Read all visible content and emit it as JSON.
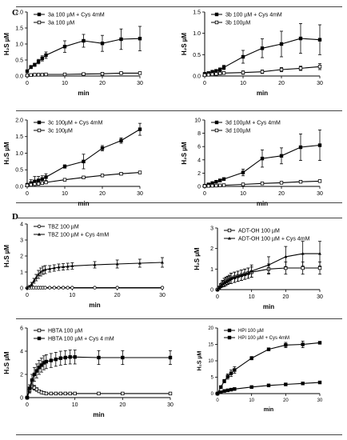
{
  "figure": {
    "panel_c_label": "C",
    "panel_d_label": "D"
  },
  "chart_data": [
    {
      "type": "line",
      "legend_position": "top-left",
      "xlabel": "min",
      "ylabel": "H₂S µM",
      "xlim": [
        0,
        30
      ],
      "ylim": [
        0,
        2.0
      ],
      "xticks": [
        0,
        10,
        20,
        30
      ],
      "yticks": [
        0.0,
        0.5,
        1.0,
        1.5,
        2.0
      ],
      "ytick_labels": [
        "0.0",
        "0.5",
        "1.0",
        "1.5",
        "2.0"
      ],
      "grid": false,
      "series": [
        {
          "name": "3a 100 µM + Cys 4mM",
          "marker": "filled-square",
          "x": [
            0,
            1,
            2,
            3,
            4,
            5,
            10,
            15,
            20,
            25,
            30
          ],
          "y": [
            0.15,
            0.28,
            0.35,
            0.45,
            0.55,
            0.65,
            0.92,
            1.1,
            1.02,
            1.15,
            1.17
          ],
          "err": [
            0.03,
            0.05,
            0.05,
            0.07,
            0.08,
            0.1,
            0.18,
            0.2,
            0.25,
            0.32,
            0.38
          ]
        },
        {
          "name": "3a 100 µM",
          "marker": "open-square",
          "x": [
            0,
            1,
            2,
            3,
            4,
            5,
            10,
            15,
            20,
            25,
            30
          ],
          "y": [
            0.02,
            0.03,
            0.04,
            0.04,
            0.04,
            0.05,
            0.05,
            0.06,
            0.07,
            0.09,
            0.09
          ],
          "err": [
            0.01,
            0.01,
            0.01,
            0.01,
            0.01,
            0.01,
            0.01,
            0.01,
            0.01,
            0.01,
            0.01
          ]
        }
      ]
    },
    {
      "type": "line",
      "legend_position": "top-left",
      "xlabel": "min",
      "ylabel": "H₂S µM",
      "xlim": [
        0,
        30
      ],
      "ylim": [
        0,
        1.5
      ],
      "xticks": [
        0,
        10,
        20,
        30
      ],
      "yticks": [
        0.0,
        0.5,
        1.0,
        1.5
      ],
      "ytick_labels": [
        "0.0",
        "0.5",
        "1.0",
        "1.5"
      ],
      "grid": false,
      "series": [
        {
          "name": "3b 100 µM + Cys 4mM",
          "marker": "filled-square",
          "x": [
            0,
            1,
            2,
            3,
            4,
            5,
            10,
            15,
            20,
            25,
            30
          ],
          "y": [
            0.05,
            0.07,
            0.1,
            0.12,
            0.15,
            0.2,
            0.45,
            0.65,
            0.75,
            0.88,
            0.85
          ],
          "err": [
            0.02,
            0.02,
            0.03,
            0.03,
            0.04,
            0.05,
            0.15,
            0.22,
            0.3,
            0.35,
            0.35
          ]
        },
        {
          "name": "3b 100µM",
          "marker": "open-square",
          "x": [
            0,
            1,
            2,
            3,
            4,
            5,
            10,
            15,
            20,
            25,
            30
          ],
          "y": [
            0.02,
            0.03,
            0.04,
            0.05,
            0.06,
            0.07,
            0.08,
            0.1,
            0.15,
            0.18,
            0.22
          ],
          "err": [
            0.01,
            0.01,
            0.01,
            0.02,
            0.02,
            0.03,
            0.04,
            0.04,
            0.05,
            0.05,
            0.07
          ]
        }
      ]
    },
    {
      "type": "line",
      "legend_position": "top-left",
      "xlabel": "min",
      "ylabel": "H₂S µM",
      "xlim": [
        0,
        30
      ],
      "ylim": [
        0,
        2.0
      ],
      "xticks": [
        0,
        10,
        20,
        30
      ],
      "yticks": [
        0.0,
        0.5,
        1.0,
        1.5,
        2.0
      ],
      "ytick_labels": [
        "0.0",
        "0.5",
        "1.0",
        "1.5",
        "2.0"
      ],
      "grid": false,
      "series": [
        {
          "name": "3c 100µM + Cys 4mM",
          "marker": "filled-square",
          "x": [
            0,
            1,
            2,
            3,
            4,
            5,
            10,
            15,
            20,
            25,
            30
          ],
          "y": [
            0.05,
            0.1,
            0.15,
            0.18,
            0.22,
            0.28,
            0.6,
            0.75,
            1.15,
            1.38,
            1.72
          ],
          "err": [
            0.02,
            0.1,
            0.15,
            0.12,
            0.1,
            0.1,
            0.05,
            0.22,
            0.08,
            0.08,
            0.18
          ]
        },
        {
          "name": "3c 100µM",
          "marker": "open-square",
          "x": [
            0,
            1,
            2,
            3,
            4,
            5,
            10,
            15,
            20,
            25,
            30
          ],
          "y": [
            0.03,
            0.05,
            0.07,
            0.08,
            0.1,
            0.12,
            0.2,
            0.27,
            0.33,
            0.38,
            0.42
          ],
          "err": [
            0.01,
            0.01,
            0.01,
            0.01,
            0.01,
            0.02,
            0.02,
            0.02,
            0.03,
            0.03,
            0.03
          ]
        }
      ]
    },
    {
      "type": "line",
      "legend_position": "top-left",
      "xlabel": "min",
      "ylabel": "H₂S µM",
      "xlim": [
        0,
        30
      ],
      "ylim": [
        0,
        10
      ],
      "xticks": [
        0,
        10,
        20,
        30
      ],
      "yticks": [
        0,
        2,
        4,
        6,
        8,
        10
      ],
      "ytick_labels": [
        "0",
        "2",
        "4",
        "6",
        "8",
        "10"
      ],
      "grid": false,
      "series": [
        {
          "name": "3d 100µM + Cys 4mM",
          "marker": "filled-square",
          "x": [
            0,
            1,
            2,
            3,
            4,
            5,
            10,
            15,
            20,
            25,
            30
          ],
          "y": [
            0.1,
            0.3,
            0.5,
            0.7,
            0.9,
            1.1,
            2.1,
            4.2,
            4.6,
            5.9,
            6.2
          ],
          "err": [
            0.05,
            0.1,
            0.1,
            0.15,
            0.2,
            0.2,
            0.5,
            1.3,
            1.2,
            2.0,
            2.3
          ]
        },
        {
          "name": "3d 100µM",
          "marker": "open-square",
          "x": [
            0,
            1,
            2,
            3,
            4,
            5,
            10,
            15,
            20,
            25,
            30
          ],
          "y": [
            0.05,
            0.08,
            0.1,
            0.12,
            0.15,
            0.18,
            0.3,
            0.45,
            0.55,
            0.7,
            0.8
          ],
          "err": [
            0.02,
            0.02,
            0.02,
            0.03,
            0.03,
            0.03,
            0.04,
            0.05,
            0.05,
            0.06,
            0.06
          ]
        }
      ]
    },
    {
      "type": "line",
      "legend_position": "top-left",
      "xlabel": "min",
      "ylabel": "H₂S µM",
      "xlim": [
        0,
        30
      ],
      "ylim": [
        0,
        4
      ],
      "xticks": [
        0,
        10,
        20,
        30
      ],
      "yticks": [
        0,
        1,
        2,
        3,
        4
      ],
      "ytick_labels": [
        "0",
        "1",
        "2",
        "3",
        "4"
      ],
      "grid": false,
      "series": [
        {
          "name": "TBZ 100 µM",
          "marker": "open-circle",
          "x": [
            0,
            0.5,
            1,
            1.5,
            2,
            2.5,
            3,
            3.5,
            4,
            5,
            6,
            7,
            8,
            9,
            10,
            15,
            20,
            30
          ],
          "y": [
            0,
            0.02,
            0.02,
            0.02,
            0.02,
            0.02,
            0.02,
            0.02,
            0.02,
            0.02,
            0.02,
            0.02,
            0.02,
            0.02,
            0.02,
            0.02,
            0.02,
            0.02
          ],
          "err": [
            0,
            0,
            0,
            0,
            0,
            0,
            0,
            0,
            0,
            0,
            0,
            0,
            0,
            0,
            0,
            0,
            0,
            0
          ]
        },
        {
          "name": "TBZ 100 µM + Cys 4mM",
          "marker": "filled-triangle",
          "x": [
            0,
            0.5,
            1,
            1.5,
            2,
            2.5,
            3,
            3.5,
            4,
            5,
            6,
            7,
            8,
            9,
            10,
            15,
            20,
            25,
            30
          ],
          "y": [
            0,
            0.1,
            0.25,
            0.45,
            0.65,
            0.85,
            1.0,
            1.1,
            1.15,
            1.2,
            1.25,
            1.3,
            1.32,
            1.35,
            1.38,
            1.45,
            1.5,
            1.55,
            1.6
          ],
          "err": [
            0,
            0.05,
            0.1,
            0.15,
            0.2,
            0.25,
            0.25,
            0.25,
            0.25,
            0.2,
            0.2,
            0.2,
            0.2,
            0.2,
            0.2,
            0.2,
            0.25,
            0.25,
            0.3
          ]
        }
      ]
    },
    {
      "type": "line",
      "legend_position": "top-left",
      "xlabel": "min",
      "ylabel": "H₂S µM",
      "xlim": [
        0,
        30
      ],
      "ylim": [
        0,
        3
      ],
      "xticks": [
        0,
        10,
        20,
        30
      ],
      "yticks": [
        0,
        1,
        2,
        3
      ],
      "ytick_labels": [
        "0",
        "1",
        "2",
        "3"
      ],
      "grid": false,
      "series": [
        {
          "name": "ADT-OH 100 µM",
          "marker": "open-square",
          "x": [
            0,
            0.5,
            1,
            1.5,
            2,
            2.5,
            3,
            3.5,
            4,
            5,
            6,
            7,
            8,
            9,
            10,
            15,
            20,
            25,
            30
          ],
          "y": [
            0,
            0.1,
            0.2,
            0.3,
            0.35,
            0.4,
            0.45,
            0.5,
            0.55,
            0.6,
            0.65,
            0.7,
            0.75,
            0.8,
            0.85,
            1.0,
            1.05,
            1.05,
            1.05
          ],
          "err": [
            0,
            0.05,
            0.1,
            0.15,
            0.2,
            0.2,
            0.2,
            0.2,
            0.25,
            0.25,
            0.25,
            0.25,
            0.25,
            0.25,
            0.25,
            0.25,
            0.3,
            0.3,
            0.3
          ]
        },
        {
          "name": "ADT-OH 100 µM + Cys 4mM",
          "marker": "filled-triangle",
          "x": [
            0,
            0.5,
            1,
            1.5,
            2,
            2.5,
            3,
            3.5,
            4,
            5,
            6,
            7,
            8,
            9,
            10,
            15,
            20,
            25,
            30
          ],
          "y": [
            0,
            0.1,
            0.2,
            0.28,
            0.35,
            0.4,
            0.45,
            0.5,
            0.55,
            0.6,
            0.65,
            0.7,
            0.75,
            0.8,
            0.9,
            1.2,
            1.6,
            1.75,
            1.75
          ],
          "err": [
            0,
            0.05,
            0.1,
            0.15,
            0.2,
            0.2,
            0.2,
            0.2,
            0.25,
            0.25,
            0.25,
            0.25,
            0.25,
            0.25,
            0.3,
            0.4,
            0.5,
            0.6,
            0.6
          ]
        }
      ]
    },
    {
      "type": "line",
      "legend_position": "top-left",
      "xlabel": "min",
      "ylabel": "H₂S µM",
      "xlim": [
        0,
        30
      ],
      "ylim": [
        0,
        6
      ],
      "xticks": [
        0,
        10,
        20,
        30
      ],
      "yticks": [
        0,
        2,
        4,
        6
      ],
      "ytick_labels": [
        "0",
        "2",
        "4",
        "6"
      ],
      "grid": false,
      "series": [
        {
          "name": "HBTA 100 µM",
          "marker": "open-square",
          "x": [
            0,
            0.5,
            1,
            1.5,
            2,
            2.5,
            3,
            3.5,
            4,
            5,
            6,
            7,
            8,
            9,
            10,
            15,
            20,
            30
          ],
          "y": [
            0,
            0.6,
            1.0,
            0.85,
            0.7,
            0.55,
            0.45,
            0.4,
            0.35,
            0.35,
            0.35,
            0.35,
            0.35,
            0.35,
            0.35,
            0.35,
            0.35,
            0.35
          ],
          "err": [
            0,
            0.2,
            0.25,
            0.2,
            0.15,
            0.1,
            0.1,
            0.05,
            0.05,
            0.05,
            0.05,
            0.05,
            0.05,
            0.05,
            0.05,
            0.05,
            0.05,
            0.05
          ]
        },
        {
          "name": "HBTA 100 µM + Cys 4 mM",
          "marker": "filled-square",
          "x": [
            0,
            0.5,
            1,
            1.5,
            2,
            2.5,
            3,
            3.5,
            4,
            5,
            6,
            7,
            8,
            9,
            10,
            15,
            20,
            30
          ],
          "y": [
            0,
            0.8,
            1.5,
            2.0,
            2.3,
            2.6,
            2.8,
            3.0,
            3.1,
            3.2,
            3.3,
            3.4,
            3.45,
            3.5,
            3.5,
            3.45,
            3.45,
            3.45
          ],
          "err": [
            0,
            0.3,
            0.5,
            0.6,
            0.6,
            0.6,
            0.6,
            0.6,
            0.6,
            0.6,
            0.6,
            0.6,
            0.6,
            0.6,
            0.6,
            0.6,
            0.6,
            0.6
          ]
        }
      ]
    },
    {
      "type": "line",
      "legend_position": "top-left",
      "xlabel": "min",
      "ylabel": "H₂S µM",
      "xlim": [
        0,
        30
      ],
      "ylim": [
        0,
        20
      ],
      "xticks": [
        0,
        10,
        20,
        30
      ],
      "yticks": [
        0,
        5,
        10,
        15,
        20
      ],
      "ytick_labels": [
        "0",
        "5",
        "10",
        "15",
        "20"
      ],
      "grid": false,
      "series": [
        {
          "name": "HPI 100 µM",
          "marker": "filled-square",
          "x": [
            0,
            1,
            2,
            3,
            4,
            5,
            10,
            15,
            20,
            25,
            30
          ],
          "y": [
            0,
            0.4,
            0.8,
            1.0,
            1.2,
            1.4,
            2.0,
            2.5,
            2.8,
            3.1,
            3.4
          ],
          "err": [
            0,
            0.1,
            0.1,
            0.15,
            0.15,
            0.2,
            0.2,
            0.2,
            0.25,
            0.25,
            0.3
          ]
        },
        {
          "name": "HPI 100 µM + Cys 4mM",
          "marker": "filled-square",
          "x": [
            0,
            1,
            2,
            3,
            4,
            5,
            10,
            15,
            20,
            25,
            30
          ],
          "y": [
            0,
            2.0,
            3.8,
            5.2,
            6.2,
            7.2,
            10.8,
            13.5,
            14.8,
            15.0,
            15.5
          ],
          "err": [
            0,
            0.3,
            0.5,
            0.8,
            1.0,
            1.0,
            0.5,
            0.4,
            0.8,
            1.0,
            0.3
          ]
        }
      ]
    }
  ]
}
